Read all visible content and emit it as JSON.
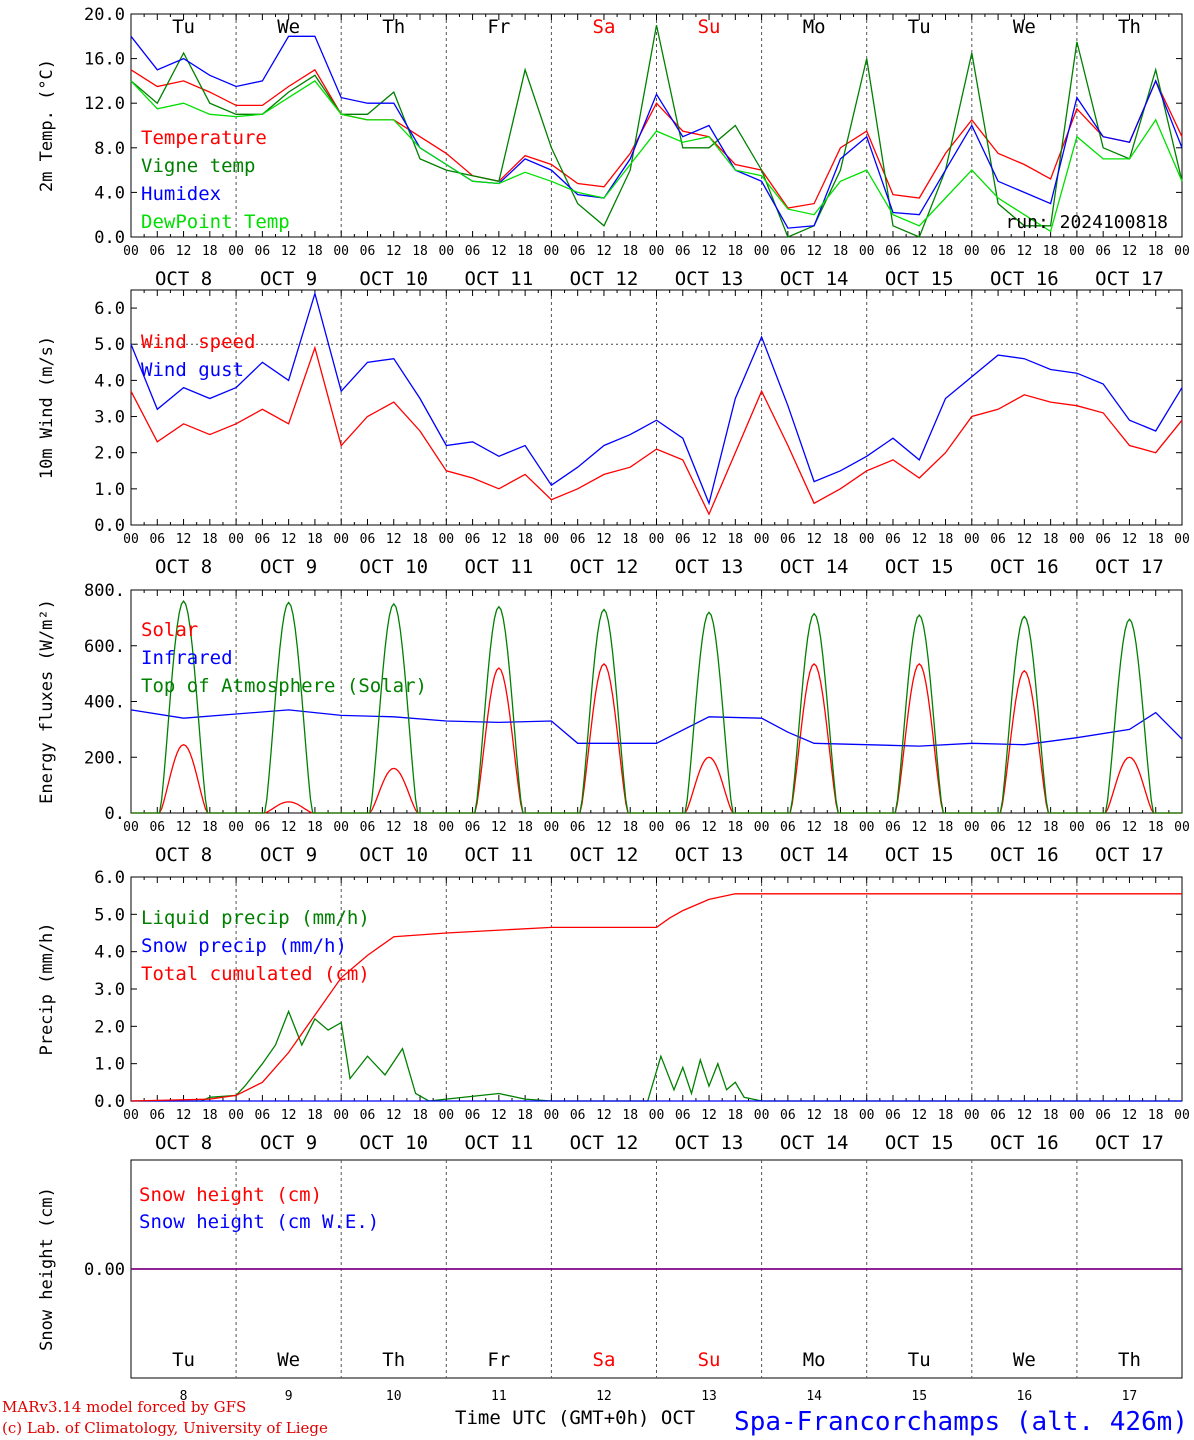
{
  "colors": {
    "red": "#ff0000",
    "green": "#008000",
    "blue": "#0000ff",
    "lime": "#00e000",
    "purple": "#800080",
    "grid": "#555555"
  },
  "days": [
    "Tu",
    "We",
    "Th",
    "Fr",
    "Sa",
    "Su",
    "Mo",
    "Tu",
    "We",
    "Th"
  ],
  "weekend_days": [
    "Sa",
    "Su"
  ],
  "date_labels": [
    "OCT  8",
    "OCT  9",
    "OCT 10",
    "OCT 11",
    "OCT 12",
    "OCT 13",
    "OCT 14",
    "OCT 15",
    "OCT 16",
    "OCT 17"
  ],
  "hour_labels": [
    "00",
    "06",
    "12",
    "18"
  ],
  "final_hour_label": "00",
  "bottom_dates": [
    "8",
    "9",
    "10",
    "11",
    "12",
    "13",
    "14",
    "15",
    "16",
    "17"
  ],
  "run_label": "run: 2024100818",
  "xlabel": "Time UTC (GMT+0h) OCT",
  "station": "Spa-Francorchamps (alt. 426m)",
  "footer": {
    "line1": "MARv3.14 model forced by GFS",
    "line2": "(c) Lab. of Climatology, University of Liege"
  },
  "chart_data": [
    {
      "id": "temp",
      "type": "line",
      "ylabel": "2m Temp. (°C)",
      "ylim": [
        0,
        20
      ],
      "yticks": [
        "0.0",
        "4.0",
        "8.0",
        "12.0",
        "16.0",
        "20.0"
      ],
      "ytick_values": [
        0,
        4,
        8,
        12,
        16,
        20
      ],
      "x_unit": "hours since Oct 8 00 UTC",
      "xlim": [
        0,
        240
      ],
      "series": [
        {
          "name": "Temperature",
          "color": "red",
          "x": [
            0,
            6,
            12,
            18,
            24,
            30,
            36,
            42,
            48,
            54,
            60,
            66,
            72,
            78,
            84,
            90,
            96,
            102,
            108,
            114,
            120,
            126,
            132,
            138,
            144,
            150,
            156,
            162,
            168,
            174,
            180,
            186,
            192,
            198,
            204,
            210,
            216,
            222,
            228,
            234,
            240
          ],
          "y": [
            15,
            13.5,
            14,
            13,
            11.8,
            11.8,
            13.5,
            15,
            11,
            10.5,
            10.5,
            9,
            7.5,
            5.5,
            5,
            7.3,
            6.5,
            4.8,
            4.5,
            7.5,
            12,
            9.5,
            9,
            6.5,
            6,
            2.6,
            3,
            8,
            9.5,
            3.8,
            3.5,
            7.5,
            10.5,
            7.5,
            6.5,
            5.2,
            11.5,
            9,
            8.5,
            14,
            9
          ]
        },
        {
          "name": "Vigne temp",
          "color": "green",
          "x": [
            0,
            6,
            12,
            18,
            24,
            30,
            36,
            42,
            48,
            54,
            60,
            66,
            72,
            78,
            84,
            90,
            96,
            102,
            108,
            114,
            120,
            126,
            132,
            138,
            144,
            150,
            156,
            162,
            168,
            174,
            180,
            186,
            192,
            198,
            204,
            210,
            216,
            222,
            228,
            234,
            240
          ],
          "y": [
            14,
            12,
            16.5,
            12,
            11,
            11,
            13,
            14.5,
            11,
            11,
            13,
            7,
            6,
            5.5,
            5,
            15,
            8,
            3,
            1,
            6,
            19,
            8,
            8,
            10,
            6,
            0,
            1,
            6,
            16,
            1,
            0,
            6,
            16.5,
            3,
            1,
            1,
            17.5,
            8,
            7,
            15,
            5
          ]
        },
        {
          "name": "Humidex",
          "color": "blue",
          "x": [
            0,
            6,
            12,
            18,
            24,
            30,
            36,
            42,
            48,
            54,
            60,
            66,
            72,
            78,
            84,
            90,
            96,
            102,
            108,
            114,
            120,
            126,
            132,
            138,
            144,
            150,
            156,
            162,
            168,
            174,
            180,
            186,
            192,
            198,
            204,
            210,
            216,
            222,
            228,
            234,
            240
          ],
          "y": [
            18,
            15,
            16,
            14.5,
            13.5,
            14,
            18,
            18,
            12.5,
            12,
            12,
            8,
            6.5,
            5,
            4.8,
            7,
            6,
            3.8,
            3.5,
            7,
            12.8,
            9,
            10,
            6,
            5,
            0.8,
            1,
            7,
            9,
            2.2,
            2,
            6,
            10,
            5,
            4,
            3,
            12.5,
            9,
            8.5,
            14,
            8
          ]
        },
        {
          "name": "DewPoint Temp",
          "color": "lime",
          "x": [
            0,
            6,
            12,
            18,
            24,
            30,
            36,
            42,
            48,
            54,
            60,
            66,
            72,
            78,
            84,
            90,
            96,
            102,
            108,
            114,
            120,
            126,
            132,
            138,
            144,
            150,
            156,
            162,
            168,
            174,
            180,
            186,
            192,
            198,
            204,
            210,
            216,
            222,
            228,
            234,
            240
          ],
          "y": [
            14,
            11.5,
            12,
            11,
            10.8,
            11,
            12.5,
            14,
            11,
            10.5,
            10.5,
            8,
            6.5,
            5,
            4.8,
            5.8,
            5,
            4,
            3.5,
            6.5,
            9.5,
            8.5,
            9,
            6,
            5.5,
            2.5,
            2,
            5,
            6,
            2,
            1,
            3.5,
            6,
            3.5,
            2,
            0.5,
            9,
            7,
            7,
            10.5,
            5
          ]
        }
      ]
    },
    {
      "id": "wind",
      "type": "line",
      "ylabel": "10m Wind (m/s)",
      "ylim": [
        0,
        6.5
      ],
      "yticks": [
        "0.0",
        "1.0",
        "2.0",
        "3.0",
        "4.0",
        "5.0",
        "6.0"
      ],
      "ytick_values": [
        0,
        1,
        2,
        3,
        4,
        5,
        6
      ],
      "ref_line": 5,
      "x_unit": "hours since Oct 8 00 UTC",
      "xlim": [
        0,
        240
      ],
      "series": [
        {
          "name": "Wind speed",
          "color": "red",
          "x": [
            0,
            6,
            12,
            18,
            24,
            30,
            36,
            42,
            48,
            54,
            60,
            66,
            72,
            78,
            84,
            90,
            96,
            102,
            108,
            114,
            120,
            126,
            132,
            138,
            144,
            150,
            156,
            162,
            168,
            174,
            180,
            186,
            192,
            198,
            204,
            210,
            216,
            222,
            228,
            234,
            240
          ],
          "y": [
            3.7,
            2.3,
            2.8,
            2.5,
            2.8,
            3.2,
            2.8,
            4.9,
            2.2,
            3,
            3.4,
            2.6,
            1.5,
            1.3,
            1,
            1.4,
            0.7,
            1,
            1.4,
            1.6,
            2.1,
            1.8,
            0.3,
            2,
            3.7,
            2.2,
            0.6,
            1,
            1.5,
            1.8,
            1.3,
            2,
            3,
            3.2,
            3.6,
            3.4,
            3.3,
            3.1,
            2.2,
            2,
            2.9
          ]
        },
        {
          "name": "Wind gust",
          "color": "blue",
          "x": [
            0,
            6,
            12,
            18,
            24,
            30,
            36,
            42,
            48,
            54,
            60,
            66,
            72,
            78,
            84,
            90,
            96,
            102,
            108,
            114,
            120,
            126,
            132,
            138,
            144,
            150,
            156,
            162,
            168,
            174,
            180,
            186,
            192,
            198,
            204,
            210,
            216,
            222,
            228,
            234,
            240
          ],
          "y": [
            5,
            3.2,
            3.8,
            3.5,
            3.8,
            4.5,
            4,
            6.4,
            3.7,
            4.5,
            4.6,
            3.5,
            2.2,
            2.3,
            1.9,
            2.2,
            1.1,
            1.6,
            2.2,
            2.5,
            2.9,
            2.4,
            0.6,
            3.5,
            5.2,
            3.3,
            1.2,
            1.5,
            1.9,
            2.4,
            1.8,
            3.5,
            4.1,
            4.7,
            4.6,
            4.3,
            4.2,
            3.9,
            2.9,
            2.6,
            3.8
          ]
        }
      ]
    },
    {
      "id": "energy",
      "type": "line",
      "ylabel": "Energy fluxes (W/m²)",
      "ylim": [
        0,
        800
      ],
      "yticks": [
        "0.",
        "200.",
        "400.",
        "600.",
        "800."
      ],
      "ytick_values": [
        0,
        200,
        400,
        600,
        800
      ],
      "x_unit": "hours since Oct 8 00 UTC",
      "xlim": [
        0,
        240
      ],
      "diurnal_hours": [
        6.5,
        17.5
      ],
      "series": [
        {
          "name": "Solar",
          "color": "red",
          "day_peaks": [
            245,
            40,
            160,
            520,
            535,
            200,
            535,
            535,
            510,
            200
          ]
        },
        {
          "name": "Infrared",
          "color": "blue",
          "x": [
            0,
            12,
            24,
            36,
            48,
            60,
            72,
            84,
            96,
            102,
            108,
            120,
            132,
            144,
            150,
            156,
            168,
            180,
            192,
            204,
            216,
            228,
            234,
            240
          ],
          "y": [
            370,
            340,
            355,
            370,
            350,
            345,
            330,
            325,
            330,
            250,
            250,
            250,
            345,
            340,
            290,
            250,
            245,
            240,
            250,
            245,
            270,
            300,
            360,
            265
          ]
        },
        {
          "name": "Top of Atmosphere (Solar)",
          "color": "green",
          "day_peaks": [
            760,
            755,
            750,
            740,
            730,
            720,
            715,
            710,
            705,
            695
          ]
        }
      ]
    },
    {
      "id": "precip",
      "type": "line",
      "ylabel": "Precip (mm/h)",
      "ylim": [
        0,
        6
      ],
      "yticks": [
        "0.0",
        "1.0",
        "2.0",
        "3.0",
        "4.0",
        "5.0",
        "6.0"
      ],
      "ytick_values": [
        0,
        1,
        2,
        3,
        4,
        5,
        6
      ],
      "x_unit": "hours since Oct 8 00 UTC",
      "xlim": [
        0,
        240
      ],
      "series": [
        {
          "name": "Liquid precip (mm/h)",
          "color": "green",
          "x": [
            0,
            16,
            18,
            24,
            26,
            30,
            33,
            36,
            39,
            42,
            45,
            48,
            50,
            54,
            58,
            62,
            65,
            68,
            72,
            80,
            84,
            90,
            96,
            118,
            121,
            124,
            126,
            128,
            130,
            132,
            134,
            136,
            138,
            140,
            144,
            240
          ],
          "y": [
            0,
            0,
            0.1,
            0.15,
            0.4,
            1,
            1.5,
            2.4,
            1.5,
            2.2,
            1.9,
            2.1,
            0.6,
            1.2,
            0.7,
            1.4,
            0.2,
            0,
            0.05,
            0.15,
            0.2,
            0.05,
            0,
            0,
            1.2,
            0.3,
            0.9,
            0.2,
            1.1,
            0.4,
            1,
            0.3,
            0.5,
            0.1,
            0,
            0
          ]
        },
        {
          "name": "Snow precip (mm/h)",
          "color": "blue",
          "x": [
            0,
            240
          ],
          "y": [
            0,
            0
          ]
        },
        {
          "name": "Total cumulated (cm)",
          "color": "red",
          "x": [
            0,
            18,
            24,
            30,
            36,
            42,
            48,
            54,
            60,
            72,
            96,
            120,
            123,
            126,
            132,
            138,
            144,
            240
          ],
          "y": [
            0,
            0.05,
            0.15,
            0.5,
            1.3,
            2.3,
            3.3,
            3.9,
            4.4,
            4.5,
            4.65,
            4.65,
            4.9,
            5.1,
            5.4,
            5.55,
            5.55,
            5.55
          ]
        }
      ]
    },
    {
      "id": "snow",
      "type": "line",
      "ylabel": "Snow height (cm)",
      "ylim": [
        -1,
        1
      ],
      "yticks": [
        "0.00"
      ],
      "ytick_values": [
        0
      ],
      "x_unit": "hours since Oct 8 00 UTC",
      "xlim": [
        0,
        240
      ],
      "series": [
        {
          "name": "Snow height (cm)",
          "color": "red",
          "x": [
            0,
            240
          ],
          "y": [
            0,
            0
          ]
        },
        {
          "name": "Snow height (cm W.E.)",
          "color": "blue",
          "x": [
            0,
            240
          ],
          "y": [
            0,
            0
          ]
        }
      ]
    }
  ]
}
